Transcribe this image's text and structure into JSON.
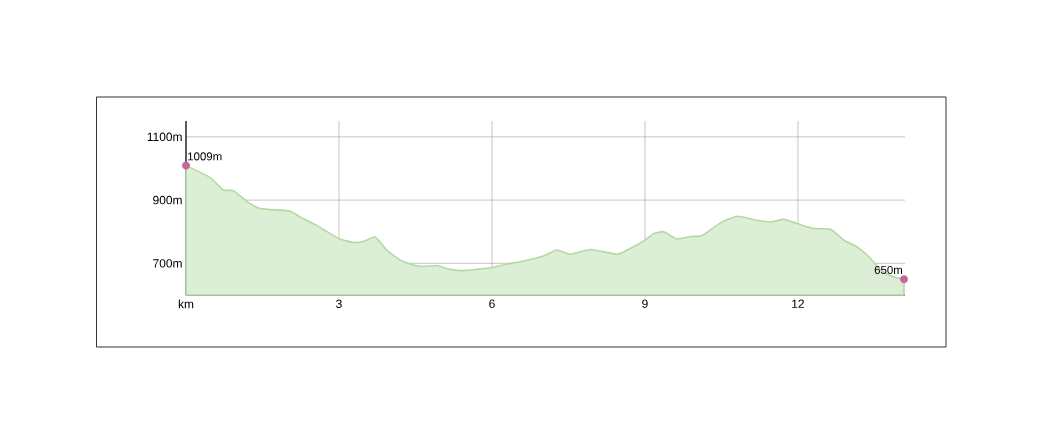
{
  "chart_data": {
    "type": "area",
    "xlim": [
      0,
      14.1
    ],
    "ylim": [
      600,
      1150
    ],
    "xticks": [
      {
        "value": 0,
        "label": "km"
      },
      3,
      6,
      9,
      12
    ],
    "yticks": [
      {
        "value": 700,
        "label": "700m"
      },
      {
        "value": 900,
        "label": "900m"
      },
      {
        "value": 1100,
        "label": "1100m"
      }
    ],
    "grid": true,
    "series": [
      {
        "color": "#b3d9a3",
        "x": [
          0,
          0.47,
          0.73,
          0.93,
          1.19,
          1.42,
          1.65,
          2.04,
          2.3,
          2.56,
          2.99,
          3.28,
          3.48,
          3.71,
          3.93,
          4.2,
          4.39,
          4.65,
          4.92,
          5.18,
          5.44,
          5.7,
          6.0,
          6.29,
          6.55,
          7.01,
          7.27,
          7.53,
          7.93,
          8.45,
          8.71,
          9.0,
          9.17,
          9.37,
          9.63,
          9.89,
          10.12,
          10.48,
          10.81,
          11.14,
          11.46,
          11.72,
          11.98,
          12.31,
          12.64,
          12.9,
          13.16,
          13.42,
          13.62,
          13.88,
          14.08
        ],
        "values": [
          1009,
          972,
          932,
          930,
          896,
          875,
          870,
          865,
          841,
          820,
          779,
          766,
          769,
          783,
          743,
          711,
          698,
          690,
          693,
          681,
          677,
          681,
          687,
          698,
          705,
          723,
          742,
          729,
          744,
          729,
          747,
          773,
          794,
          800,
          777,
          785,
          788,
          828,
          849,
          838,
          831,
          839,
          826,
          810,
          808,
          773,
          752,
          716,
          679,
          658,
          650
        ]
      },
      {
        "type": "scatter",
        "color": "#c0689b",
        "marker": "circle",
        "x": [
          0,
          14.08
        ],
        "values": [
          1009,
          650
        ],
        "value_labels": [
          "1009m",
          "650m"
        ]
      }
    ]
  }
}
